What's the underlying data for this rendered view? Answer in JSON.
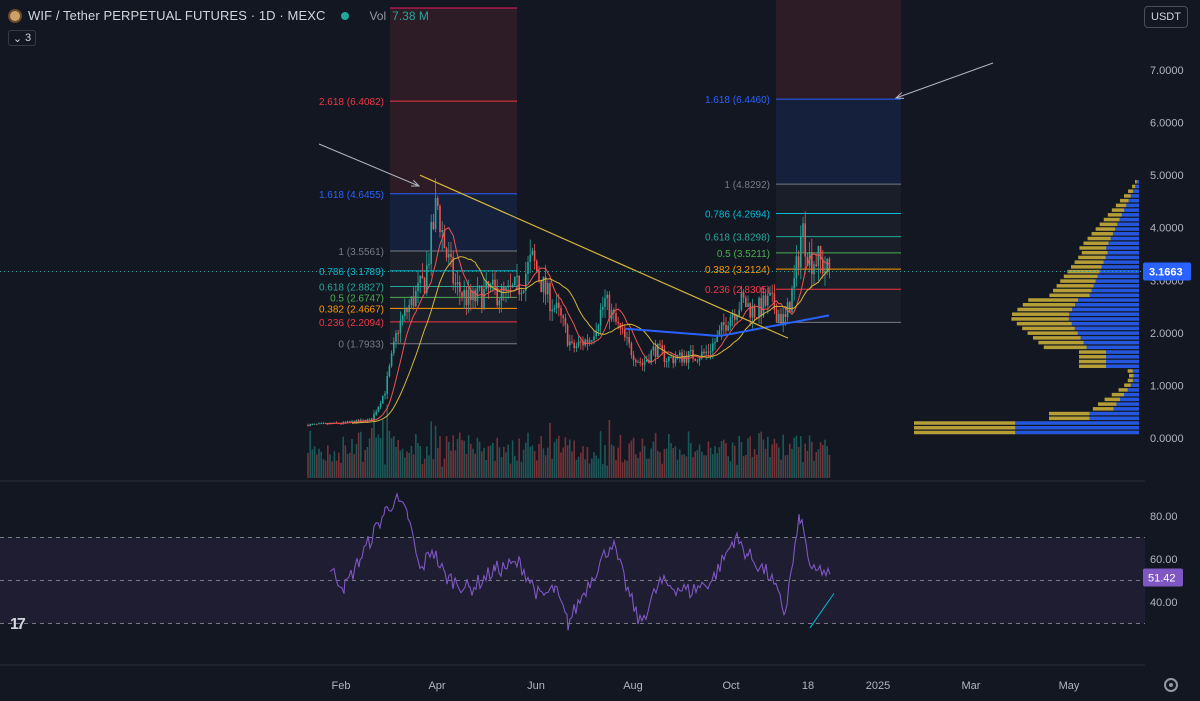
{
  "header": {
    "title": "WIF / Tether PERPETUAL FUTURES · 1D · MEXC",
    "vol_label": "Vol",
    "vol_value": "7.38 M",
    "indicators_count": "3"
  },
  "currency_button": "USDT",
  "colors": {
    "background": "#131722",
    "up": "#26a69a",
    "down": "#ef5350",
    "fib_red": "#f23645",
    "fib_blue": "#2962ff",
    "trendline": "#d4b63a",
    "rsi": "#7e57c2",
    "profile_gold": "#d4b63a",
    "profile_blue": "#2962ff"
  },
  "price_axis": {
    "ticks": [
      "7.0000",
      "6.0000",
      "5.0000",
      "4.0000",
      "3.0000",
      "2.0000",
      "1.0000",
      "0.0000"
    ],
    "current_price": "3.1663"
  },
  "rsi_axis": {
    "ticks": [
      "80.00",
      "60.00",
      "40.00"
    ],
    "current_value": "51.42"
  },
  "time_axis": {
    "labels": [
      "Feb",
      "Apr",
      "Jun",
      "Aug",
      "Oct",
      "18",
      "2025",
      "Mar",
      "May"
    ]
  },
  "fib_left": {
    "levels": [
      {
        "label": "2.618 (6.4082)",
        "value": 6.4082,
        "color": "#f23645"
      },
      {
        "label": "1.618 (4.6455)",
        "value": 4.6455,
        "color": "#2962ff"
      },
      {
        "label": "1 (3.5561)",
        "value": 3.5561,
        "color": "#787b86"
      },
      {
        "label": "0.786 (3.1789)",
        "value": 3.1789,
        "color": "#00bcd4"
      },
      {
        "label": "0.618 (2.8827)",
        "value": 2.8827,
        "color": "#26a69a"
      },
      {
        "label": "0.5 (2.6747)",
        "value": 2.6747,
        "color": "#4caf50"
      },
      {
        "label": "0.382 (2.4667)",
        "value": 2.4667,
        "color": "#ff9800"
      },
      {
        "label": "0.236 (2.2094)",
        "value": 2.2094,
        "color": "#f23645"
      },
      {
        "label": "0 (1.7933)",
        "value": 1.7933,
        "color": "#787b86"
      }
    ]
  },
  "fib_right": {
    "levels": [
      {
        "label": "1.618 (6.4460)",
        "value": 6.446,
        "color": "#2962ff"
      },
      {
        "label": "1 (4.8292)",
        "value": 4.8292,
        "color": "#787b86"
      },
      {
        "label": "0.786 (4.2694)",
        "value": 4.2694,
        "color": "#00bcd4"
      },
      {
        "label": "0.618 (3.8298)",
        "value": 3.8298,
        "color": "#26a69a"
      },
      {
        "label": "0.5 (3.5211)",
        "value": 3.5211,
        "color": "#4caf50"
      },
      {
        "label": "0.382 (3.2124)",
        "value": 3.2124,
        "color": "#ff9800"
      },
      {
        "label": "0.236 (2.8305)",
        "value": 2.8305,
        "color": "#f23645"
      }
    ]
  }
}
